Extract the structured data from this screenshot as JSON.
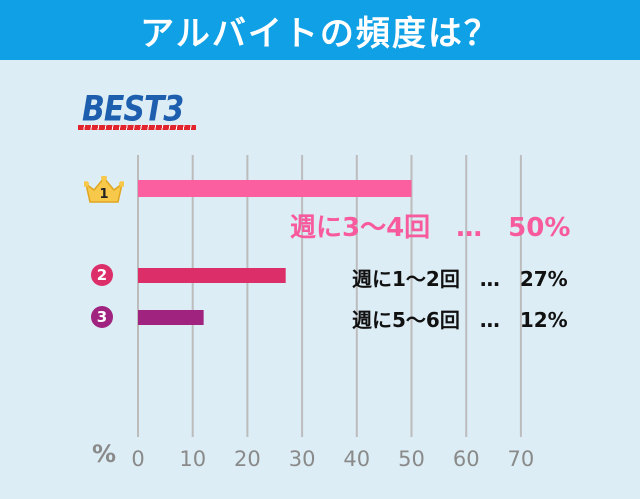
{
  "title": "アルバイトの頻度は？",
  "subtitle": "BEST3",
  "colors": {
    "title_bg": "#0fa0e6",
    "panel_bg": "#dcedf5",
    "grid": "#bcbcbc",
    "rank1": "#fc5fa0",
    "rank2": "#dc2f6a",
    "rank3": "#a0247f",
    "axis_text": "#8a8a8a"
  },
  "chart_data": {
    "type": "bar",
    "orientation": "horizontal",
    "categories": [
      "週に3～4回",
      "週に1～2回",
      "週に5～6回"
    ],
    "values": [
      50,
      27,
      12
    ],
    "ranks": [
      "1",
      "2",
      "3"
    ],
    "labels": [
      "週に3～4回　…　50%",
      "週に1～2回　…　27%",
      "週に5～6回　…　12%"
    ],
    "xlabel": "%",
    "xlim": [
      0,
      70
    ],
    "xticks": [
      "0",
      "10",
      "20",
      "30",
      "40",
      "50",
      "60",
      "70"
    ],
    "grid": true
  }
}
